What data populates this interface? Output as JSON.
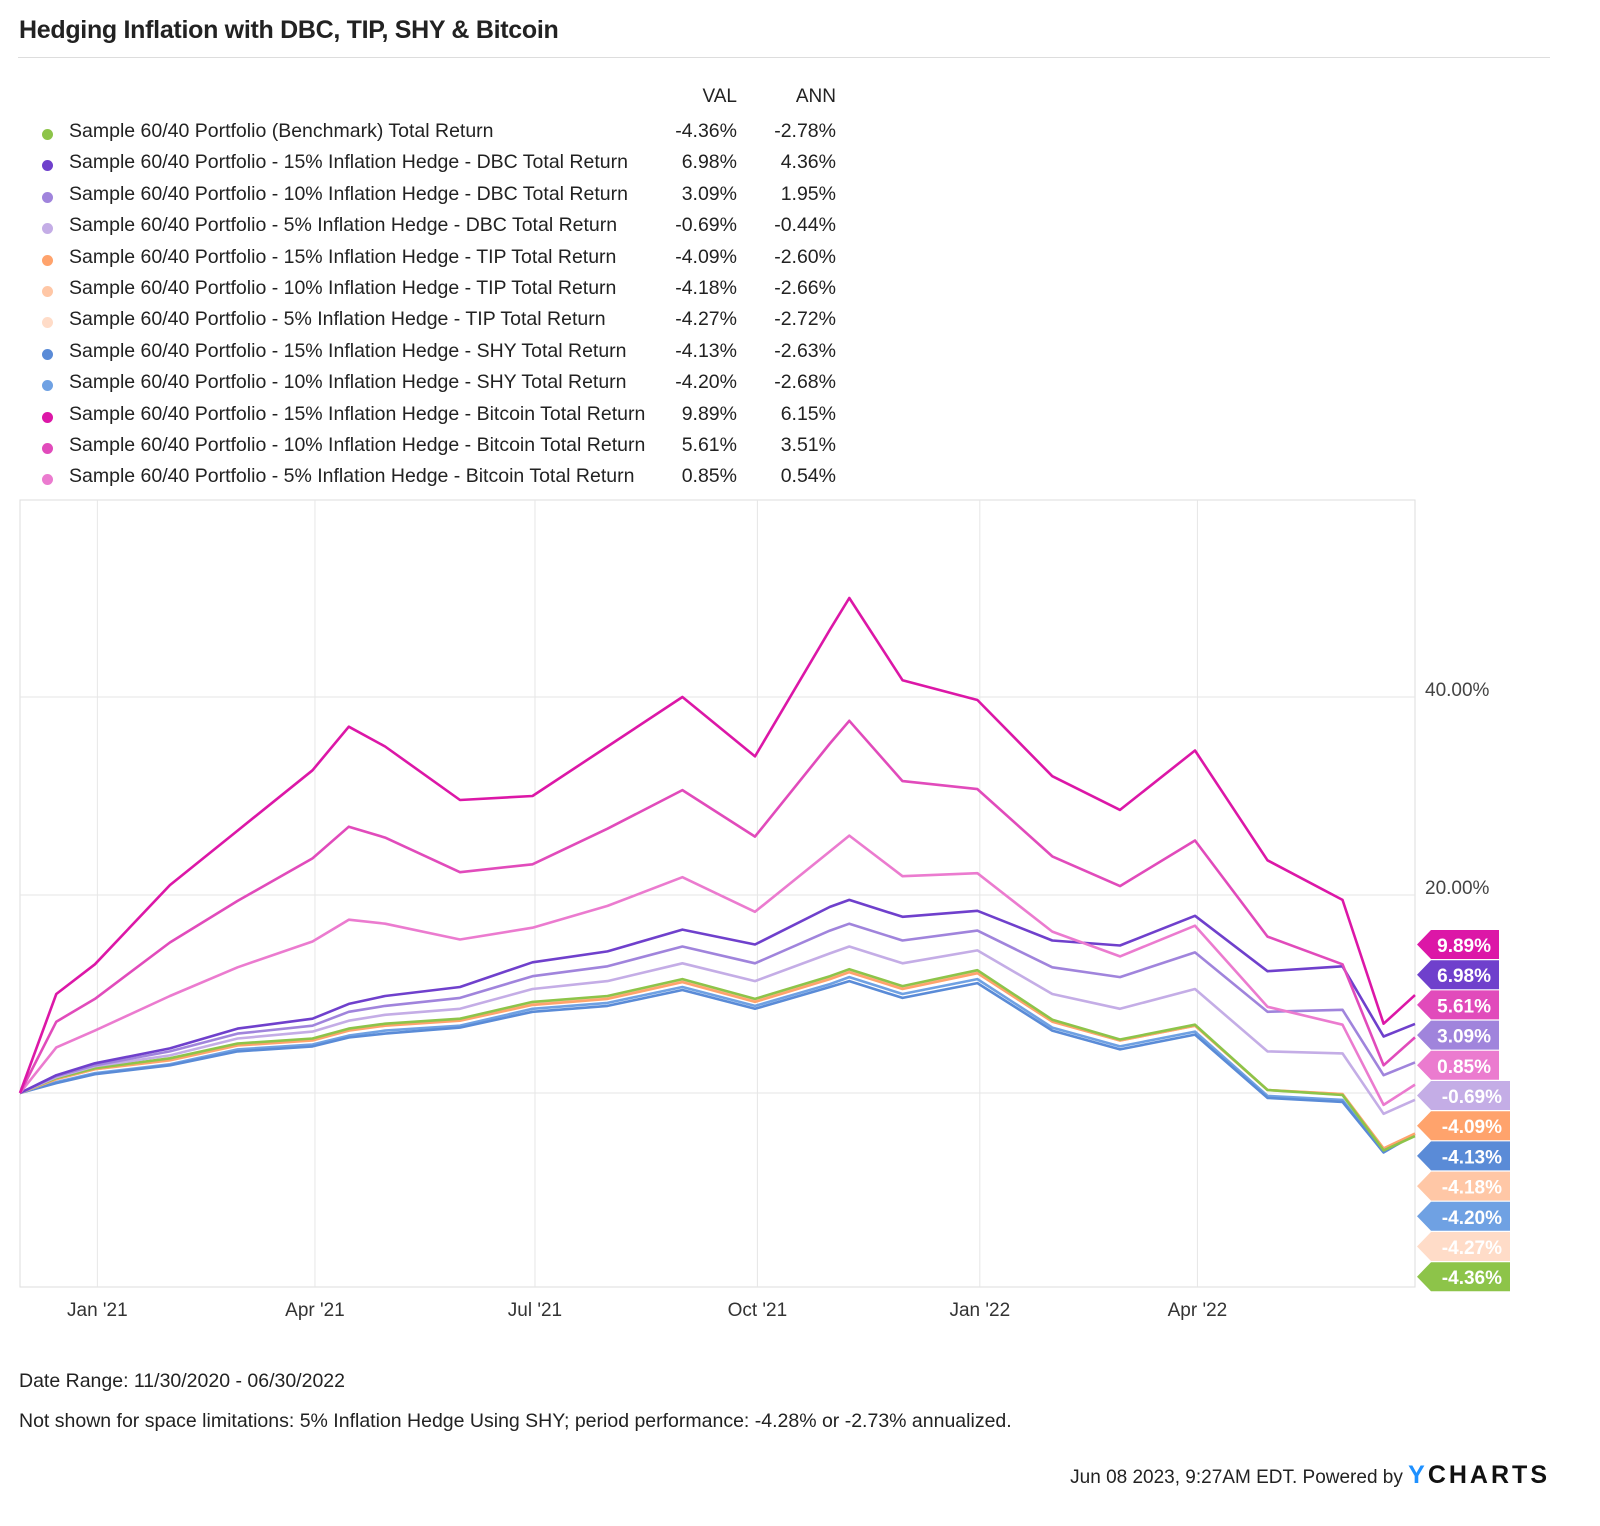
{
  "chart_data": {
    "type": "line",
    "title": "Hedging Inflation with DBC, TIP, SHY & Bitcoin",
    "legend_headers": {
      "val": "VAL",
      "ann": "ANN"
    },
    "xlabel": "",
    "ylabel": "",
    "x_ticks": [
      {
        "date": "2021-01-01",
        "label": "Jan '21"
      },
      {
        "date": "2021-04-01",
        "label": "Apr '21"
      },
      {
        "date": "2021-07-01",
        "label": "Jul '21"
      },
      {
        "date": "2021-10-01",
        "label": "Oct '21"
      },
      {
        "date": "2022-01-01",
        "label": "Jan '22"
      },
      {
        "date": "2022-04-01",
        "label": "Apr '22"
      }
    ],
    "y_ticks": [
      {
        "value": 20,
        "label": "20.00%"
      },
      {
        "value": 40,
        "label": "40.00%"
      }
    ],
    "y_gridlines": [
      0,
      20,
      40
    ],
    "xlim": [
      "2020-11-30",
      "2022-06-30"
    ],
    "ylim": [
      -19.6,
      59.9
    ],
    "grid": true,
    "legend_position": "top-left",
    "x": [
      "2020-11-30",
      "2020-12-15",
      "2020-12-31",
      "2021-01-31",
      "2021-02-28",
      "2021-03-31",
      "2021-04-15",
      "2021-04-30",
      "2021-05-31",
      "2021-06-30",
      "2021-07-31",
      "2021-08-31",
      "2021-09-30",
      "2021-10-31",
      "2021-11-08",
      "2021-11-30",
      "2021-12-31",
      "2022-01-31",
      "2022-02-28",
      "2022-03-31",
      "2022-04-30",
      "2022-05-31",
      "2022-06-17",
      "2022-06-30"
    ],
    "series": [
      {
        "name": "Sample 60/40 Portfolio (Benchmark) Total Return",
        "val": "-4.36%",
        "ann": "-2.78%",
        "color": "#8dc449",
        "values": [
          0,
          1.5,
          2.5,
          3.5,
          5.0,
          5.5,
          6.5,
          7.0,
          7.5,
          9.2,
          9.8,
          11.5,
          9.5,
          11.8,
          12.5,
          10.8,
          12.4,
          7.4,
          5.4,
          6.9,
          0.3,
          -0.2,
          -5.8,
          -4.36
        ]
      },
      {
        "name": "Sample 60/40 Portfolio - 15% Inflation Hedge - DBC Total Return",
        "val": "6.98%",
        "ann": "4.36%",
        "color": "#6f40cc",
        "values": [
          0,
          1.8,
          3.0,
          4.5,
          6.5,
          7.5,
          9.0,
          9.8,
          10.7,
          13.2,
          14.3,
          16.5,
          15.0,
          18.8,
          19.5,
          17.8,
          18.4,
          15.4,
          14.9,
          17.9,
          12.3,
          12.8,
          5.7,
          6.98
        ]
      },
      {
        "name": "Sample 60/40 Portfolio - 10% Inflation Hedge - DBC Total Return",
        "val": "3.09%",
        "ann": "1.95%",
        "color": "#a084dc",
        "values": [
          0,
          1.7,
          2.8,
          4.2,
          6.0,
          6.8,
          8.2,
          8.8,
          9.6,
          11.8,
          12.8,
          14.8,
          13.1,
          16.4,
          17.1,
          15.4,
          16.4,
          12.7,
          11.7,
          14.2,
          8.2,
          8.4,
          1.8,
          3.09
        ]
      },
      {
        "name": "Sample 60/40 Portfolio - 5% Inflation Hedge - DBC Total Return",
        "val": "-0.69%",
        "ann": "-0.44%",
        "color": "#c4ade6",
        "values": [
          0,
          1.6,
          2.7,
          3.8,
          5.5,
          6.2,
          7.3,
          7.9,
          8.5,
          10.5,
          11.3,
          13.1,
          11.3,
          14.1,
          14.8,
          13.1,
          14.4,
          10.0,
          8.5,
          10.5,
          4.2,
          4.0,
          -2.1,
          -0.69
        ]
      },
      {
        "name": "Sample 60/40 Portfolio - 15% Inflation Hedge - TIP Total Return",
        "val": "-4.09%",
        "ann": "-2.60%",
        "color": "#ffa36c",
        "values": [
          0,
          1.4,
          2.4,
          3.3,
          4.8,
          5.3,
          6.3,
          6.8,
          7.3,
          8.9,
          9.5,
          11.2,
          9.2,
          11.5,
          12.2,
          10.5,
          12.1,
          7.2,
          5.3,
          6.8,
          0.3,
          -0.1,
          -5.6,
          -4.09
        ]
      },
      {
        "name": "Sample 60/40 Portfolio - 10% Inflation Hedge - TIP Total Return",
        "val": "-4.18%",
        "ann": "-2.66%",
        "color": "#ffc7a6",
        "values": [
          0,
          1.4,
          2.4,
          3.4,
          4.9,
          5.4,
          6.4,
          6.9,
          7.4,
          9.0,
          9.6,
          11.3,
          9.3,
          11.6,
          12.3,
          10.6,
          12.2,
          7.3,
          5.3,
          6.8,
          0.3,
          -0.1,
          -5.7,
          -4.18
        ]
      },
      {
        "name": "Sample 60/40 Portfolio - 5% Inflation Hedge - TIP Total Return",
        "val": "-4.27%",
        "ann": "-2.72%",
        "color": "#ffdcc8",
        "values": [
          0,
          1.5,
          2.5,
          3.4,
          4.9,
          5.4,
          6.4,
          6.9,
          7.4,
          9.1,
          9.7,
          11.4,
          9.4,
          11.7,
          12.4,
          10.7,
          12.3,
          7.3,
          5.3,
          6.8,
          0.3,
          -0.2,
          -5.7,
          -4.27
        ]
      },
      {
        "name": "Sample 60/40 Portfolio - 15% Inflation Hedge - SHY Total Return",
        "val": "-4.13%",
        "ann": "-2.63%",
        "color": "#5a8bd7",
        "values": [
          0,
          1.0,
          1.9,
          2.8,
          4.2,
          4.7,
          5.6,
          6.0,
          6.6,
          8.2,
          8.8,
          10.4,
          8.5,
          10.7,
          11.3,
          9.6,
          11.1,
          6.3,
          4.4,
          5.9,
          -0.5,
          -0.9,
          -6.0,
          -4.13
        ]
      },
      {
        "name": "Sample 60/40 Portfolio - 10% Inflation Hedge - SHY Total Return",
        "val": "-4.20%",
        "ann": "-2.68%",
        "color": "#6fa1e3",
        "values": [
          0,
          1.1,
          2.0,
          2.9,
          4.4,
          4.9,
          5.8,
          6.3,
          6.8,
          8.5,
          9.1,
          10.7,
          8.8,
          11.0,
          11.7,
          10.0,
          11.5,
          6.6,
          4.7,
          6.2,
          -0.3,
          -0.7,
          -6.0,
          -4.2
        ]
      },
      {
        "name": "Sample 60/40 Portfolio - 15% Inflation Hedge - Bitcoin Total Return",
        "val": "9.89%",
        "ann": "6.15%",
        "color": "#dc17a7",
        "values": [
          0,
          10,
          13,
          21,
          26.5,
          32.6,
          37,
          35,
          29.6,
          30,
          35,
          40,
          34,
          46.8,
          50,
          41.7,
          39.7,
          32,
          28.6,
          34.6,
          23.5,
          19.5,
          7,
          9.89
        ]
      },
      {
        "name": "Sample 60/40 Portfolio - 10% Inflation Hedge - Bitcoin Total Return",
        "val": "5.61%",
        "ann": "3.51%",
        "color": "#e14bbb",
        "values": [
          0,
          7.2,
          9.5,
          15.2,
          19.4,
          23.7,
          26.9,
          25.8,
          22.3,
          23.1,
          26.7,
          30.6,
          25.9,
          35.3,
          37.6,
          31.5,
          30.7,
          23.9,
          20.9,
          25.5,
          15.8,
          13.0,
          2.8,
          5.61
        ]
      },
      {
        "name": "Sample 60/40 Portfolio - 5% Inflation Hedge - Bitcoin Total Return",
        "val": "0.85%",
        "ann": "0.54%",
        "color": "#eb7bcf",
        "values": [
          0,
          4.6,
          6.3,
          9.8,
          12.7,
          15.3,
          17.5,
          17.1,
          15.5,
          16.7,
          18.9,
          21.8,
          18.3,
          24.4,
          26,
          21.9,
          22.2,
          16.3,
          13.8,
          16.9,
          8.7,
          6.9,
          -1.2,
          0.85
        ]
      }
    ]
  },
  "footer": {
    "date_range": "Date Range: 11/30/2020 - 06/30/2022",
    "note": "Not shown for space limitations: 5% Inflation Hedge Using SHY; period performance: -4.28% or -2.73% annualized.",
    "timestamp": "Jun 08 2023, 9:27AM EDT. Powered by",
    "logo_text": "YCHARTS"
  }
}
